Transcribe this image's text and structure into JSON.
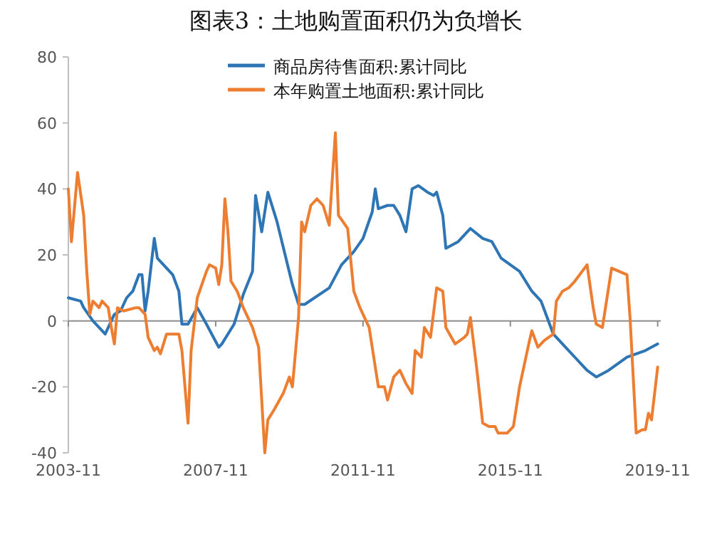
{
  "chart_data": {
    "type": "line",
    "title": "图表3：土地购置面积仍为负增长",
    "xlim": [
      "2003-11",
      "2019-12"
    ],
    "xticks": [
      "2003-11",
      "2007-11",
      "2011-11",
      "2015-11",
      "2019-11"
    ],
    "ylim": [
      -40,
      80
    ],
    "yticks": [
      -40,
      -20,
      0,
      20,
      40,
      60,
      80
    ],
    "legend": "top",
    "marker": "none",
    "series": [
      {
        "name": "商品房待售面积:累计同比",
        "color": "#2e75b6",
        "x": [
          "2003-11",
          "2004-03",
          "2004-04",
          "2004-07",
          "2004-09",
          "2004-11",
          "2004-12",
          "2005-02",
          "2005-04",
          "2005-06",
          "2005-08",
          "2005-10",
          "2005-11",
          "2005-12",
          "2006-01",
          "2006-03",
          "2006-04",
          "2006-06",
          "2006-09",
          "2006-11",
          "2006-12",
          "2007-02",
          "2007-05",
          "2007-08",
          "2007-12",
          "2008-01",
          "2008-05",
          "2008-08",
          "2008-11",
          "2008-12",
          "2009-02",
          "2009-04",
          "2009-07",
          "2009-12",
          "2010-02",
          "2010-04",
          "2010-12",
          "2011-04",
          "2011-08",
          "2011-11",
          "2012-02",
          "2012-03",
          "2012-04",
          "2012-07",
          "2012-09",
          "2012-11",
          "2013-01",
          "2013-03",
          "2013-05",
          "2013-08",
          "2013-10",
          "2013-11",
          "2014-01",
          "2014-02",
          "2014-06",
          "2014-10",
          "2015-02",
          "2015-05",
          "2015-08",
          "2015-11",
          "2016-02",
          "2016-06",
          "2016-09",
          "2017-01",
          "2017-04",
          "2017-09",
          "2017-12",
          "2018-03",
          "2018-07",
          "2019-01",
          "2019-07",
          "2019-11"
        ],
        "values": [
          7,
          6,
          4,
          0,
          -2,
          -4,
          -2,
          2,
          3,
          7,
          9,
          14,
          14,
          3,
          9,
          25,
          19,
          17,
          14,
          9,
          -1,
          -1,
          4,
          -1,
          -8,
          -7,
          -1,
          8,
          15,
          38,
          27,
          39,
          30,
          11,
          5,
          5,
          10,
          17,
          21,
          25,
          33,
          40,
          34,
          35,
          35,
          32,
          27,
          40,
          41,
          39,
          38,
          39,
          32,
          22,
          24,
          28,
          25,
          24,
          19,
          17,
          15,
          9,
          6,
          -4,
          -7,
          -12,
          -15,
          -17,
          -15,
          -11,
          -9,
          -7
        ]
      },
      {
        "name": "本年购置土地面积:累计同比",
        "color": "#ed7d31",
        "x": [
          "2003-11",
          "2003-12",
          "2004-02",
          "2004-04",
          "2004-05",
          "2004-06",
          "2004-07",
          "2004-09",
          "2004-10",
          "2004-12",
          "2005-01",
          "2005-02",
          "2005-03",
          "2005-05",
          "2005-09",
          "2005-10",
          "2005-12",
          "2006-01",
          "2006-03",
          "2006-04",
          "2006-05",
          "2006-07",
          "2006-09",
          "2006-11",
          "2006-12",
          "2007-02",
          "2007-03",
          "2007-05",
          "2007-08",
          "2007-09",
          "2007-11",
          "2007-12",
          "2008-01",
          "2008-02",
          "2008-03",
          "2008-04",
          "2008-06",
          "2008-08",
          "2008-11",
          "2009-01",
          "2009-03",
          "2009-04",
          "2009-06",
          "2009-09",
          "2009-11",
          "2009-12",
          "2010-02",
          "2010-03",
          "2010-04",
          "2010-06",
          "2010-08",
          "2010-10",
          "2010-12",
          "2011-02",
          "2011-03",
          "2011-06",
          "2011-08",
          "2011-10",
          "2012-01",
          "2012-04",
          "2012-06",
          "2012-07",
          "2012-09",
          "2012-11",
          "2013-01",
          "2013-03",
          "2013-04",
          "2013-06",
          "2013-07",
          "2013-09",
          "2013-11",
          "2014-01",
          "2014-02",
          "2014-05",
          "2014-08",
          "2014-09",
          "2014-10",
          "2014-12",
          "2015-02",
          "2015-04",
          "2015-06",
          "2015-07",
          "2015-10",
          "2015-12",
          "2016-02",
          "2016-05",
          "2016-06",
          "2016-08",
          "2016-10",
          "2017-01",
          "2017-02",
          "2017-04",
          "2017-06",
          "2017-08",
          "2017-12",
          "2018-02",
          "2018-03",
          "2018-05",
          "2018-06",
          "2018-08",
          "2019-01",
          "2019-02",
          "2019-04",
          "2019-06",
          "2019-07",
          "2019-08",
          "2019-09",
          "2019-11"
        ],
        "values": [
          40,
          24,
          45,
          32,
          15,
          2,
          6,
          4,
          6,
          4,
          -2,
          -7,
          4,
          3,
          4,
          4,
          2,
          -5,
          -9,
          -8,
          -10,
          -4,
          -4,
          -4,
          -9,
          -31,
          -9,
          7,
          15,
          17,
          16,
          11,
          17,
          37,
          27,
          12,
          9,
          4,
          -2,
          -8,
          -40,
          -30,
          -27,
          -22,
          -17,
          -20,
          1,
          30,
          27,
          35,
          37,
          35,
          29,
          57,
          32,
          28,
          9,
          4,
          -2,
          -20,
          -20,
          -24,
          -17,
          -15,
          -19,
          -22,
          -9,
          -11,
          -2,
          -5,
          10,
          9,
          -2,
          -7,
          -5,
          -4,
          1,
          -14,
          -31,
          -32,
          -32,
          -34,
          -34,
          -32,
          -20,
          -7,
          -3,
          -8,
          -6,
          -4,
          6,
          9,
          10,
          12,
          17,
          4,
          -1,
          -2,
          4,
          16,
          14,
          1,
          -34,
          -33,
          -33,
          -28,
          -30,
          -14
        ]
      }
    ]
  }
}
